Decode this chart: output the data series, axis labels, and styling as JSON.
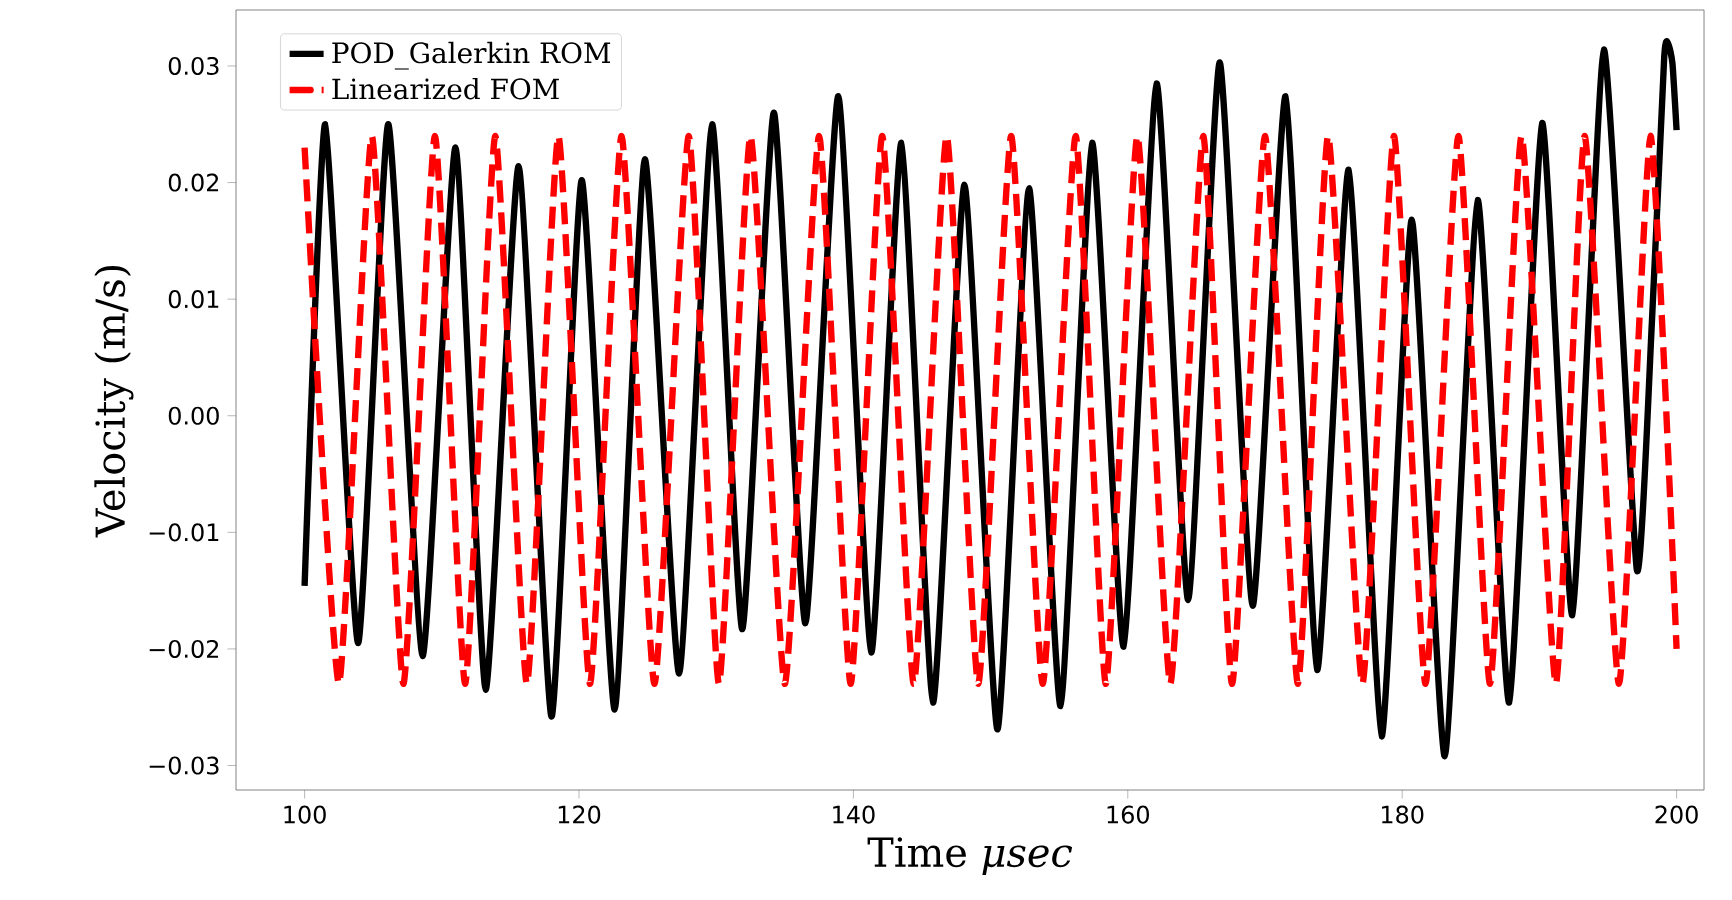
{
  "chart_data": {
    "type": "line",
    "xlabel": "Time *μsec*",
    "ylabel": "Velocity (m/s)",
    "xlim": [
      95,
      202
    ],
    "ylim": [
      -0.0321,
      0.0348
    ],
    "xticks": [
      100,
      120,
      140,
      160,
      180,
      200
    ],
    "yticks": [
      {
        "value": -0.03,
        "label": "−0.03"
      },
      {
        "value": -0.02,
        "label": "−0.02"
      },
      {
        "value": -0.01,
        "label": "−0.01"
      },
      {
        "value": 0,
        "label": "0.00"
      },
      {
        "value": 0.01,
        "label": "0.01"
      },
      {
        "value": 0.02,
        "label": "0.02"
      },
      {
        "value": 0.03,
        "label": "0.03"
      }
    ],
    "legend": "top left",
    "grid": false,
    "marker": "none",
    "series": [
      {
        "name": "POD_Galerkin ROM",
        "color": "#000000",
        "line_style": "solid",
        "x": [
          100,
          101.5,
          103.9,
          106.1,
          108.6,
          111.0,
          113.2,
          115.6,
          118.0,
          120.2,
          122.6,
          124.8,
          127.3,
          129.7,
          131.9,
          134.2,
          136.5,
          138.9,
          141.3,
          143.5,
          145.8,
          148.1,
          150.5,
          152.8,
          155.1,
          157.4,
          159.7,
          162.1,
          164.4,
          166.7,
          169.1,
          171.5,
          173.8,
          176.1,
          178.5,
          180.7,
          183.1,
          185.5,
          187.8,
          190.2,
          192.4,
          194.7,
          197.1,
          198.2,
          199.1,
          199.4,
          199.7,
          200
        ],
        "values": [
          -0.0146,
          0.025,
          -0.0195,
          0.025,
          -0.0206,
          0.023,
          -0.0235,
          0.0214,
          -0.0258,
          0.0202,
          -0.0252,
          0.022,
          -0.0221,
          0.025,
          -0.0183,
          0.026,
          -0.0178,
          0.0274,
          -0.0203,
          0.0234,
          -0.0246,
          0.0198,
          -0.0269,
          0.0195,
          -0.0249,
          0.0234,
          -0.0198,
          0.0285,
          -0.0158,
          0.0303,
          -0.0163,
          0.0274,
          -0.0218,
          0.0211,
          -0.0275,
          0.0168,
          -0.0292,
          0.0185,
          -0.0246,
          0.0251,
          -0.0171,
          0.0314,
          -0.0132,
          0.008,
          0.0308,
          0.0319,
          0.0302,
          0.0245
        ]
      },
      {
        "name": "Linearized FOM",
        "color": "#ff0000",
        "line_style": "dashed",
        "x": [
          100,
          102.5,
          104.9,
          107.2,
          109.5,
          111.7,
          113.9,
          116.2,
          118.5,
          120.8,
          123.1,
          125.5,
          128.0,
          130.2,
          132.5,
          135.0,
          137.5,
          139.8,
          142.1,
          144.4,
          146.8,
          149.1,
          151.5,
          153.8,
          156.2,
          158.4,
          160.7,
          163.1,
          165.5,
          167.6,
          170.0,
          172.4,
          174.6,
          177.1,
          179.4,
          181.7,
          184.1,
          186.4,
          188.7,
          191.2,
          193.3,
          195.8,
          198.1,
          200
        ],
        "values": [
          0.023,
          -0.023,
          0.024,
          -0.023,
          0.024,
          -0.023,
          0.024,
          -0.023,
          0.024,
          -0.023,
          0.024,
          -0.023,
          0.024,
          -0.023,
          0.024,
          -0.023,
          0.024,
          -0.023,
          0.024,
          -0.023,
          0.024,
          -0.023,
          0.024,
          -0.023,
          0.024,
          -0.023,
          0.024,
          -0.023,
          0.024,
          -0.023,
          0.024,
          -0.023,
          0.024,
          -0.023,
          0.024,
          -0.023,
          0.024,
          -0.023,
          0.024,
          -0.023,
          0.024,
          -0.023,
          0.024,
          -0.02
        ]
      }
    ]
  }
}
